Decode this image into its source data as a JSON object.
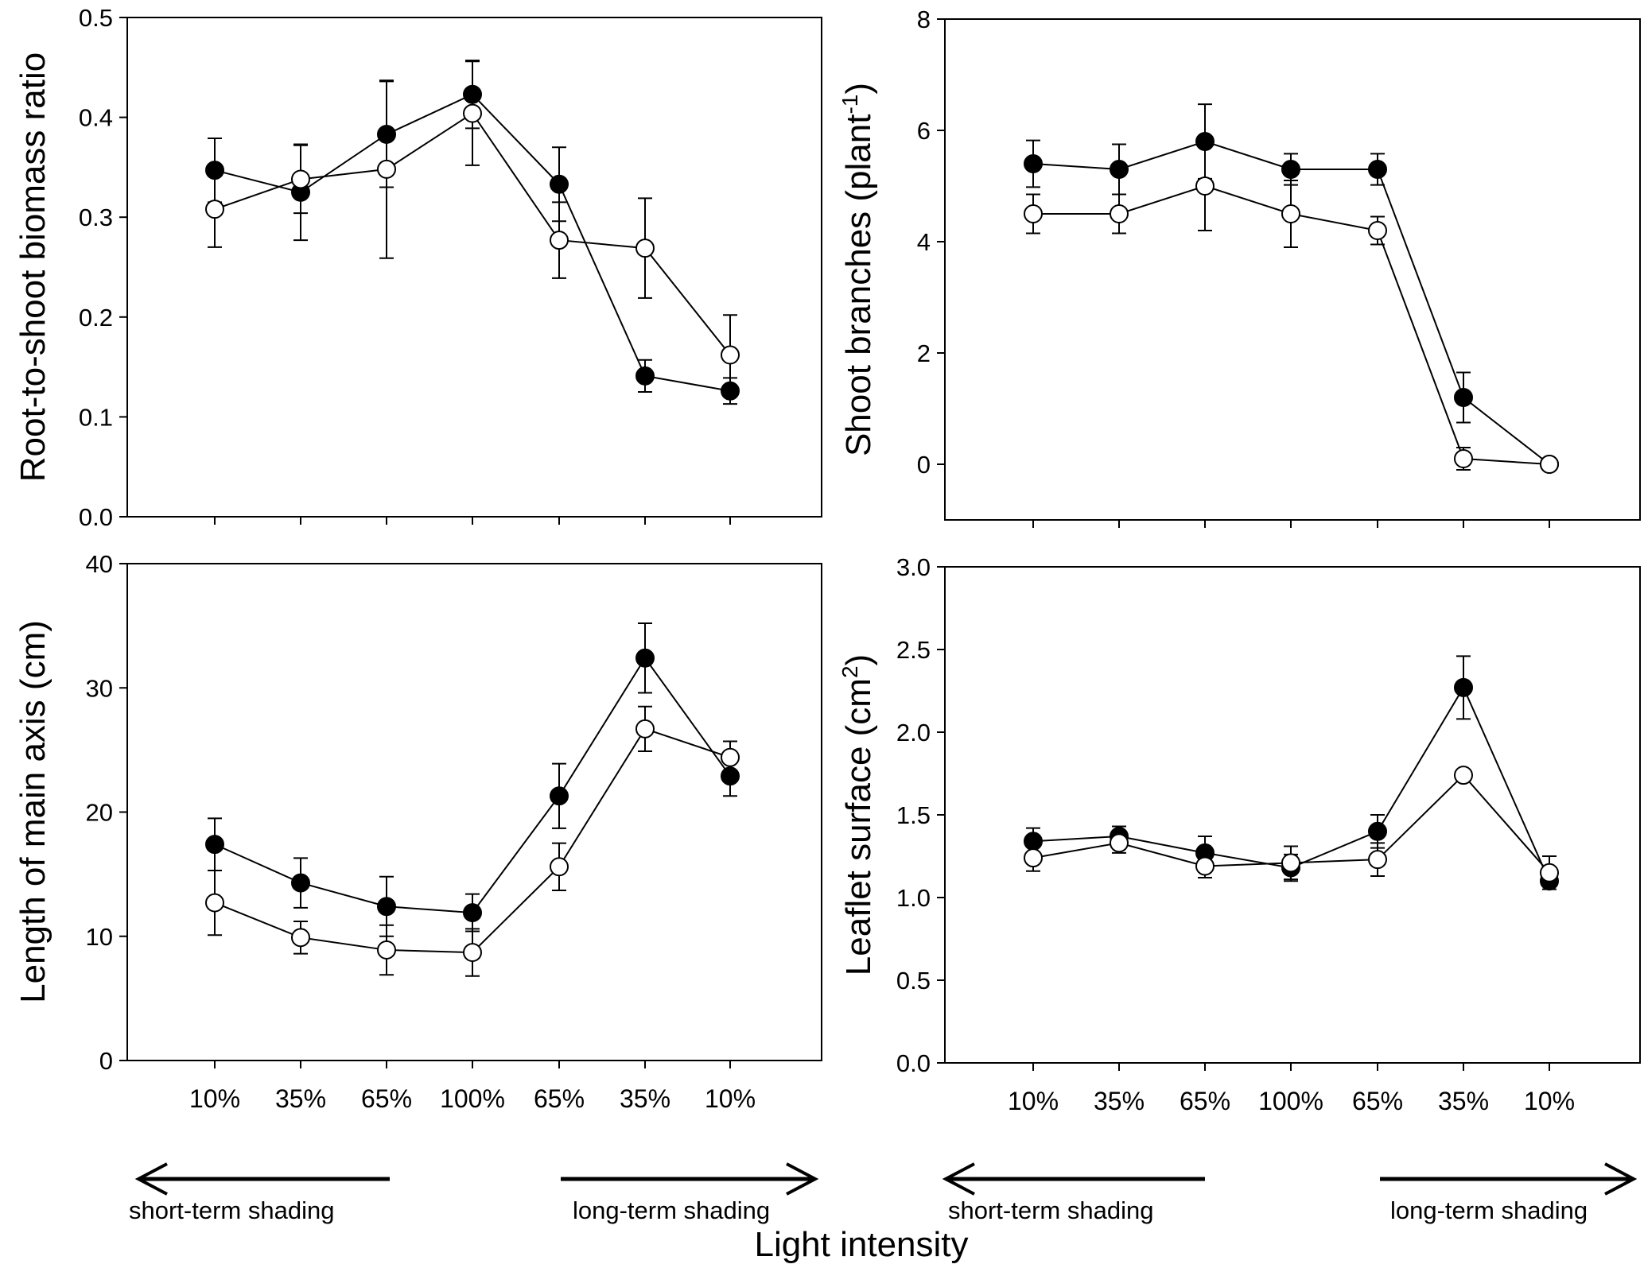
{
  "figure": {
    "global_xlabel": "Light intensity",
    "arrows": {
      "left_label": "short-term shading",
      "right_label": "long-term shading"
    }
  },
  "colors": {
    "filled_marker": "#000000",
    "open_marker": "#ffffff",
    "line": "#000000"
  },
  "chart_data": [
    {
      "type": "line",
      "panel": "top-left",
      "ylabel": "Root-to-shoot biomass ratio",
      "ylim": [
        0,
        0.5
      ],
      "yticks": [
        0.0,
        0.1,
        0.2,
        0.3,
        0.4,
        0.5
      ],
      "ytick_labels": [
        "0.0",
        "0.1",
        "0.2",
        "0.3",
        "0.4",
        "0.5"
      ],
      "categories": [
        "10%",
        "35%",
        "65%",
        "100%",
        "65%",
        "35%",
        "10%"
      ],
      "show_category_labels": false,
      "series": [
        {
          "name": "filled",
          "marker": "filled",
          "values": [
            0.347,
            0.325,
            0.383,
            0.423,
            0.333,
            0.141,
            0.126
          ],
          "errors": [
            0.032,
            0.048,
            0.053,
            0.034,
            0.037,
            0.016,
            0.013
          ]
        },
        {
          "name": "open",
          "marker": "open",
          "values": [
            0.308,
            0.338,
            0.348,
            0.404,
            0.277,
            0.269,
            0.162
          ],
          "errors": [
            0.038,
            0.034,
            0.089,
            0.052,
            0.038,
            0.05,
            0.04
          ]
        }
      ]
    },
    {
      "type": "line",
      "panel": "top-right",
      "ylabel": "Shoot branches (plant",
      "ylabel_sup": "-1",
      "ylabel_end": ")",
      "ylim": [
        -1,
        8
      ],
      "yticks": [
        0,
        2,
        4,
        6,
        8
      ],
      "ytick_labels": [
        "0",
        "2",
        "4",
        "6",
        "8"
      ],
      "categories": [
        "10%",
        "35%",
        "65%",
        "100%",
        "65%",
        "35%",
        "10%"
      ],
      "show_category_labels": false,
      "series": [
        {
          "name": "filled",
          "marker": "filled",
          "values": [
            5.4,
            5.3,
            5.8,
            5.3,
            5.3,
            1.2,
            0.0
          ],
          "errors": [
            0.42,
            0.45,
            0.67,
            0.28,
            0.28,
            0.45,
            0.0
          ]
        },
        {
          "name": "open",
          "marker": "open",
          "values": [
            4.5,
            4.5,
            5.0,
            4.5,
            4.2,
            0.1,
            0.0
          ],
          "errors": [
            0.35,
            0.35,
            0.8,
            0.6,
            0.25,
            0.2,
            0.0
          ]
        }
      ]
    },
    {
      "type": "line",
      "panel": "bottom-left",
      "ylabel": "Length of main axis (cm)",
      "ylim": [
        0,
        40
      ],
      "yticks": [
        0,
        10,
        20,
        30,
        40
      ],
      "ytick_labels": [
        "0",
        "10",
        "20",
        "30",
        "40"
      ],
      "categories": [
        "10%",
        "35%",
        "65%",
        "100%",
        "65%",
        "35%",
        "10%"
      ],
      "show_category_labels": true,
      "series": [
        {
          "name": "filled",
          "marker": "filled",
          "values": [
            17.4,
            14.3,
            12.4,
            11.9,
            21.3,
            32.4,
            22.9
          ],
          "errors": [
            2.1,
            2.0,
            2.4,
            1.5,
            2.6,
            2.8,
            1.6
          ]
        },
        {
          "name": "open",
          "marker": "open",
          "values": [
            12.7,
            9.9,
            8.9,
            8.7,
            15.6,
            26.7,
            24.4
          ],
          "errors": [
            2.6,
            1.3,
            2.0,
            1.9,
            1.9,
            1.8,
            1.3
          ]
        }
      ]
    },
    {
      "type": "line",
      "panel": "bottom-right",
      "ylabel": "Leaflet surface (cm",
      "ylabel_sup": "2",
      "ylabel_end": ")",
      "ylim": [
        0,
        3.0
      ],
      "yticks": [
        0.0,
        0.5,
        1.0,
        1.5,
        2.0,
        2.5,
        3.0
      ],
      "ytick_labels": [
        "0.0",
        "0.5",
        "1.0",
        "1.5",
        "2.0",
        "2.5",
        "3.0"
      ],
      "categories": [
        "10%",
        "35%",
        "65%",
        "100%",
        "65%",
        "35%",
        "10%"
      ],
      "show_category_labels": true,
      "series": [
        {
          "name": "filled",
          "marker": "filled",
          "values": [
            1.34,
            1.37,
            1.27,
            1.18,
            1.4,
            2.27,
            1.1
          ],
          "errors": [
            0.08,
            0.06,
            0.1,
            0.08,
            0.1,
            0.19,
            0.0
          ]
        },
        {
          "name": "open",
          "marker": "open",
          "values": [
            1.24,
            1.33,
            1.19,
            1.21,
            1.23,
            1.74,
            1.15
          ],
          "errors": [
            0.08,
            0.06,
            0.07,
            0.1,
            0.1,
            0.0,
            0.1
          ]
        }
      ]
    }
  ]
}
